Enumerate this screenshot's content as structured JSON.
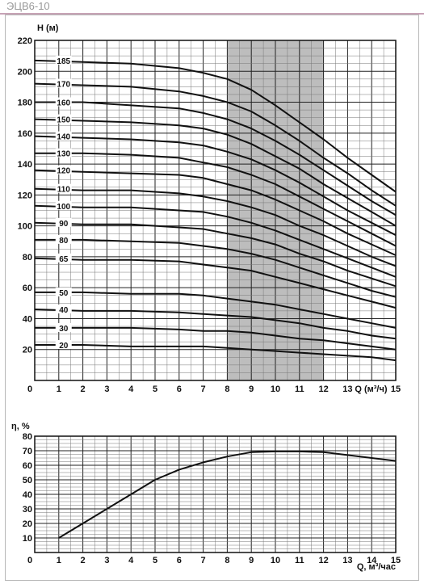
{
  "title": "ЭЦВ6-10",
  "colors": {
    "title_rule": "#c7a3b6",
    "shade": "#bdbdbd",
    "line": "#111111",
    "grid_minor": "#777777"
  },
  "chart_data": [
    {
      "type": "line",
      "ylabel": "H (м)",
      "xlabel": "Q (м³/ч)",
      "xlim": [
        0,
        15
      ],
      "ylim": [
        0,
        220
      ],
      "x_ticks": [
        "0",
        "1",
        "2",
        "3",
        "4",
        "5",
        "6",
        "7",
        "8",
        "9",
        "10",
        "11",
        "12",
        "13",
        "15"
      ],
      "y_ticks": [
        "20",
        "40",
        "60",
        "80",
        "100",
        "120",
        "140",
        "160",
        "180",
        "200",
        "220"
      ],
      "grid": true,
      "shaded_range_x": [
        8,
        12
      ],
      "curve_x": [
        0,
        2,
        4,
        6,
        7,
        8,
        9,
        10,
        11,
        12,
        13,
        14,
        15
      ],
      "series": [
        {
          "name": "185",
          "values": [
            207,
            206,
            205,
            202,
            199,
            195,
            188,
            178,
            167,
            156,
            144,
            133,
            122
          ]
        },
        {
          "name": "170",
          "values": [
            192,
            191,
            190,
            187,
            184,
            180,
            174,
            165,
            155,
            144,
            134,
            123,
            113
          ]
        },
        {
          "name": "160",
          "values": [
            180,
            180,
            178,
            176,
            173,
            169,
            163,
            155,
            146,
            136,
            126,
            116,
            107
          ]
        },
        {
          "name": "150",
          "values": [
            169,
            168,
            167,
            165,
            163,
            159,
            153,
            145,
            137,
            127,
            118,
            109,
            100
          ]
        },
        {
          "name": "140",
          "values": [
            158,
            157,
            156,
            154,
            152,
            148,
            143,
            136,
            128,
            119,
            110,
            102,
            94
          ]
        },
        {
          "name": "130",
          "values": [
            147,
            147,
            146,
            144,
            141,
            138,
            133,
            127,
            119,
            111,
            103,
            95,
            87
          ]
        },
        {
          "name": "120",
          "values": [
            136,
            135,
            134,
            133,
            131,
            127,
            123,
            117,
            110,
            103,
            95,
            88,
            81
          ]
        },
        {
          "name": "110",
          "values": [
            124,
            123,
            123,
            121,
            119,
            116,
            112,
            107,
            100,
            94,
            87,
            80,
            74
          ]
        },
        {
          "name": "100",
          "values": [
            113,
            112,
            112,
            110,
            109,
            106,
            102,
            97,
            91,
            85,
            79,
            73,
            67
          ]
        },
        {
          "name": "90",
          "values": [
            102,
            101,
            101,
            99,
            98,
            95,
            92,
            88,
            82,
            77,
            71,
            66,
            61
          ]
        },
        {
          "name": "80",
          "values": [
            91,
            91,
            90,
            89,
            87,
            85,
            82,
            78,
            73,
            68,
            63,
            58,
            54
          ]
        },
        {
          "name": "65",
          "values": [
            79,
            78,
            78,
            77,
            75,
            73,
            71,
            67,
            63,
            59,
            55,
            51,
            47
          ]
        },
        {
          "name": "50",
          "values": [
            57,
            57,
            56,
            56,
            55,
            53,
            51,
            49,
            46,
            43,
            40,
            37,
            34
          ]
        },
        {
          "name": "40",
          "values": [
            46,
            45,
            45,
            44,
            43,
            42,
            41,
            39,
            37,
            34,
            32,
            29,
            27
          ]
        },
        {
          "name": "30",
          "values": [
            34,
            34,
            34,
            33,
            32,
            32,
            31,
            29,
            27,
            26,
            24,
            22,
            20
          ]
        },
        {
          "name": "20",
          "values": [
            23,
            23,
            22,
            22,
            22,
            21,
            20,
            19,
            18,
            17,
            16,
            15,
            13
          ]
        }
      ]
    },
    {
      "type": "line",
      "ylabel": "η, %",
      "xlabel": "Q, м³/час",
      "xlim": [
        0,
        15
      ],
      "ylim": [
        0,
        80
      ],
      "x_ticks": [
        "0",
        "1",
        "2",
        "3",
        "4",
        "5",
        "6",
        "7",
        "8",
        "9",
        "10",
        "11",
        "12",
        "13",
        "14",
        "15"
      ],
      "y_ticks": [
        "10",
        "20",
        "30",
        "40",
        "50",
        "60",
        "70",
        "80"
      ],
      "grid": true,
      "x": [
        1,
        2,
        3,
        4,
        5,
        6,
        7,
        8,
        9,
        10,
        11,
        12,
        13,
        14,
        15
      ],
      "series": [
        {
          "values": [
            10,
            20,
            30,
            40,
            50,
            57,
            62,
            66,
            69,
            69.5,
            69.5,
            69,
            67,
            65,
            63
          ]
        }
      ]
    }
  ]
}
